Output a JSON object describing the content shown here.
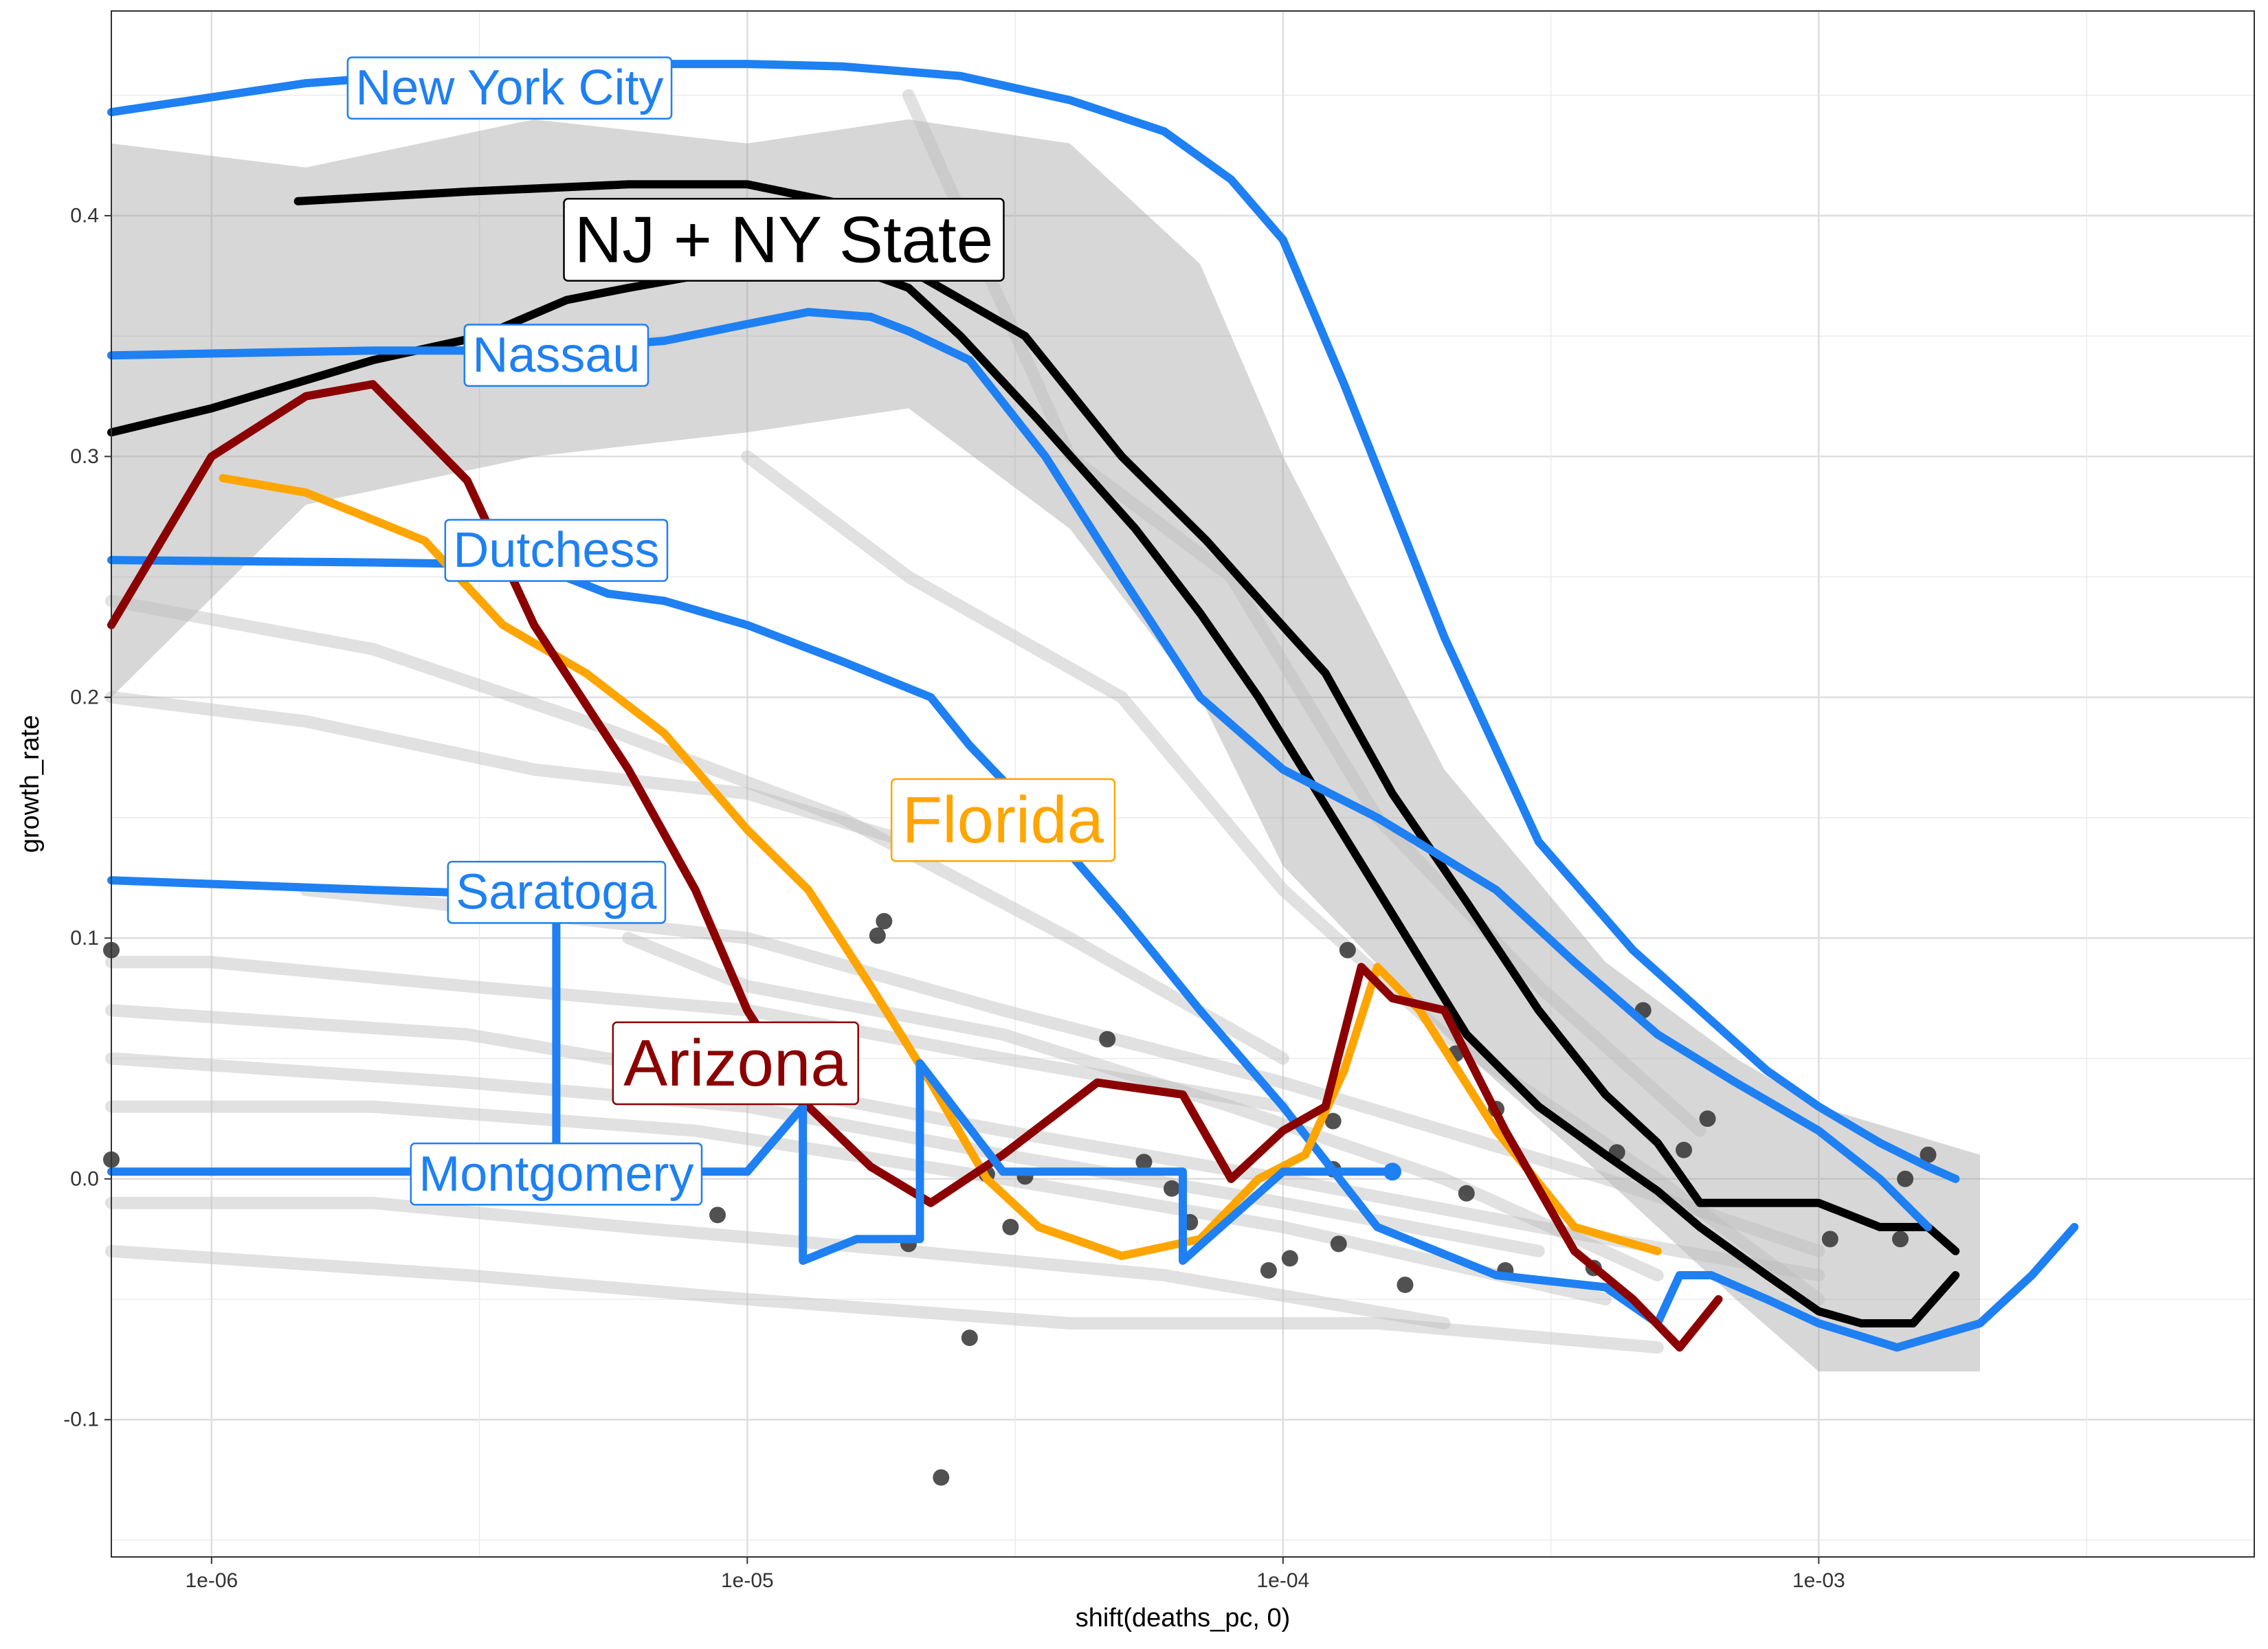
{
  "chart_data": {
    "type": "line",
    "xlabel": "shift(deaths_pc, 0)",
    "ylabel": "growth_rate",
    "x_scale": "log10",
    "xlim": [
      6.5e-07,
      0.0065
    ],
    "ylim": [
      -0.157,
      0.485
    ],
    "x_ticks": [
      {
        "value": 1e-06,
        "label": "1e-06"
      },
      {
        "value": 1e-05,
        "label": "1e-05"
      },
      {
        "value": 0.0001,
        "label": "1e-04"
      },
      {
        "value": 0.001,
        "label": "1e-03"
      }
    ],
    "y_ticks": [
      {
        "value": -0.1,
        "label": "-0.1"
      },
      {
        "value": 0.0,
        "label": "0.0"
      },
      {
        "value": 0.1,
        "label": "0.1"
      },
      {
        "value": 0.2,
        "label": "0.2"
      },
      {
        "value": 0.3,
        "label": "0.3"
      },
      {
        "value": 0.4,
        "label": "0.4"
      }
    ],
    "grid": true,
    "smooth_band": {
      "x": [
        6.5e-07,
        1.5e-06,
        4e-06,
        1e-05,
        2e-05,
        4e-05,
        7e-05,
        0.0001,
        0.0002,
        0.0004,
        0.0007,
        0.001,
        0.002
      ],
      "upper": [
        0.43,
        0.42,
        0.44,
        0.43,
        0.44,
        0.43,
        0.38,
        0.3,
        0.17,
        0.09,
        0.05,
        0.03,
        0.01
      ],
      "lower": [
        0.2,
        0.28,
        0.3,
        0.31,
        0.32,
        0.27,
        0.2,
        0.13,
        0.06,
        0.0,
        -0.05,
        -0.08,
        -0.08
      ]
    },
    "background_series": [
      {
        "x": [
          6.5e-07,
          3e-06,
          1e-05,
          3e-05,
          0.0001,
          0.0003,
          0.001
        ],
        "values": [
          0.07,
          0.06,
          0.04,
          0.02,
          0.0,
          -0.02,
          -0.04
        ]
      },
      {
        "x": [
          6.5e-07,
          3e-06,
          1e-05,
          3e-05,
          0.0001,
          0.0003
        ],
        "values": [
          0.05,
          0.04,
          0.03,
          0.01,
          -0.01,
          -0.03
        ]
      },
      {
        "x": [
          6.5e-07,
          2e-06,
          8e-06,
          3e-05,
          0.0001,
          0.0004
        ],
        "values": [
          0.03,
          0.03,
          0.02,
          0.0,
          -0.02,
          -0.05
        ]
      },
      {
        "x": [
          6.5e-07,
          2e-06,
          6e-06,
          2e-05,
          6e-05,
          0.0002
        ],
        "values": [
          -0.01,
          -0.01,
          -0.02,
          -0.03,
          -0.04,
          -0.06
        ]
      },
      {
        "x": [
          6.5e-07,
          3e-06,
          1e-05,
          4e-05,
          0.00015,
          0.0005
        ],
        "values": [
          -0.03,
          -0.04,
          -0.05,
          -0.06,
          -0.06,
          -0.07
        ]
      },
      {
        "x": [
          6.5e-07,
          1.5e-06,
          4e-06,
          1e-05,
          2e-05
        ],
        "values": [
          0.2,
          0.19,
          0.17,
          0.16,
          0.14
        ]
      },
      {
        "x": [
          6.5e-07,
          2e-06,
          5e-06,
          1.5e-05,
          4e-05,
          0.0001
        ],
        "values": [
          0.24,
          0.22,
          0.19,
          0.15,
          0.1,
          0.05
        ]
      },
      {
        "x": [
          2e-05,
          4e-05,
          8e-05,
          0.00015,
          0.0003,
          0.0006
        ],
        "values": [
          0.45,
          0.3,
          0.25,
          0.15,
          0.08,
          0.02
        ]
      },
      {
        "x": [
          1e-05,
          2e-05,
          5e-05,
          0.0001,
          0.0002,
          0.0005,
          0.001
        ],
        "values": [
          0.3,
          0.25,
          0.2,
          0.12,
          0.06,
          0.0,
          -0.05
        ]
      },
      {
        "x": [
          6e-06,
          1e-05,
          3e-05,
          8e-05,
          0.0002,
          0.0005
        ],
        "values": [
          0.1,
          0.08,
          0.06,
          0.03,
          0.0,
          -0.04
        ]
      },
      {
        "x": [
          1.5e-06,
          4e-06,
          1e-05,
          3e-05,
          0.0001,
          0.0004,
          0.001
        ],
        "values": [
          0.12,
          0.11,
          0.1,
          0.07,
          0.04,
          0.0,
          -0.03
        ]
      },
      {
        "x": [
          6.5e-07,
          1e-06,
          3e-06,
          1e-05,
          3e-05,
          0.0001
        ],
        "values": [
          0.09,
          0.09,
          0.08,
          0.07,
          0.05,
          0.03
        ]
      }
    ],
    "scatter_points": {
      "x": [
        6.5e-07,
        6.5e-07,
        8.8e-06,
        1.75e-05,
        1.8e-05,
        2e-05,
        2.3e-05,
        2.6e-05,
        2.8e-05,
        3.1e-05,
        3.3e-05,
        4.7e-05,
        5.5e-05,
        6.2e-05,
        6.7e-05,
        9.4e-05,
        0.000103,
        0.000124,
        0.000124,
        0.000127,
        0.000132,
        0.000169,
        0.00021,
        0.00022,
        0.00025,
        0.00026,
        0.00038,
        0.00042,
        0.00047,
        0.00056,
        0.00062,
        0.00105,
        0.00142,
        0.00145,
        0.0016
      ],
      "values": [
        0.095,
        0.008,
        -0.015,
        0.101,
        0.107,
        -0.027,
        -0.124,
        -0.066,
        0.002,
        -0.02,
        0.001,
        0.058,
        0.007,
        -0.004,
        -0.018,
        -0.038,
        -0.033,
        0.024,
        0.004,
        -0.027,
        0.095,
        -0.044,
        0.052,
        -0.006,
        0.029,
        -0.038,
        -0.037,
        0.011,
        0.07,
        0.012,
        0.025,
        -0.025,
        -0.025,
        0.0,
        0.01
      ]
    },
    "series": [
      {
        "name": "New York City",
        "color": "#1E80F2",
        "x": [
          6.5e-07,
          1.5e-06,
          3e-06,
          6e-06,
          1e-05,
          1.5e-05,
          2.5e-05,
          4e-05,
          6e-05,
          8e-05,
          0.0001,
          0.00013,
          0.0002,
          0.0003,
          0.00045,
          0.0006,
          0.0008,
          0.001,
          0.0013,
          0.0016,
          0.0018
        ],
        "values": [
          0.443,
          0.455,
          0.46,
          0.463,
          0.463,
          0.462,
          0.458,
          0.448,
          0.435,
          0.415,
          0.39,
          0.33,
          0.225,
          0.14,
          0.095,
          0.07,
          0.045,
          0.03,
          0.015,
          0.005,
          0.0
        ]
      },
      {
        "name": "NJ + NY State",
        "color": "#000000",
        "x": [
          6.5e-07,
          1e-06,
          2e-06,
          3.2e-06,
          4.6e-06,
          6e-06,
          9e-06,
          1.3e-05,
          2e-05,
          2.5e-05,
          3.5e-05,
          5.3e-05,
          7e-05,
          9e-05,
          0.00012,
          0.00016,
          0.00022,
          0.0003,
          0.0004,
          0.0005,
          0.0006,
          0.0008,
          0.001,
          0.0012,
          0.0015,
          0.0018
        ],
        "values": [
          0.31,
          0.32,
          0.34,
          0.35,
          0.365,
          0.37,
          0.377,
          0.385,
          0.37,
          0.35,
          0.315,
          0.27,
          0.235,
          0.2,
          0.155,
          0.11,
          0.06,
          0.03,
          0.01,
          -0.005,
          -0.02,
          -0.04,
          -0.055,
          -0.06,
          -0.06,
          -0.04
        ]
      },
      {
        "name": "NJ + NY State (upper)",
        "color": "#000000",
        "x": [
          1.45e-06,
          3e-06,
          6e-06,
          1e-05,
          1.5e-05,
          2.1e-05,
          3.3e-05,
          5e-05,
          7.2e-05,
          9.5e-05,
          0.00012,
          0.00016,
          0.00022,
          0.0003,
          0.0004,
          0.0005,
          0.0006,
          0.0008,
          0.001,
          0.0013,
          0.0016,
          0.0018
        ],
        "values": [
          0.406,
          0.41,
          0.413,
          0.413,
          0.405,
          0.375,
          0.35,
          0.3,
          0.265,
          0.235,
          0.21,
          0.16,
          0.115,
          0.07,
          0.035,
          0.015,
          -0.01,
          -0.01,
          -0.01,
          -0.02,
          -0.02,
          -0.03
        ]
      },
      {
        "name": "Nassau",
        "color": "#1E80F2",
        "x": [
          6.5e-07,
          2e-06,
          4e-06,
          7e-06,
          1e-05,
          1.3e-05,
          1.7e-05,
          2e-05,
          2.6e-05,
          3.6e-05,
          5e-05,
          7e-05,
          0.0001,
          0.00015,
          0.00025,
          0.00035,
          0.0005,
          0.0007,
          0.001,
          0.0013,
          0.0016
        ],
        "values": [
          0.342,
          0.344,
          0.344,
          0.348,
          0.355,
          0.36,
          0.358,
          0.352,
          0.34,
          0.3,
          0.25,
          0.2,
          0.17,
          0.15,
          0.12,
          0.09,
          0.06,
          0.04,
          0.02,
          0.0,
          -0.02
        ]
      },
      {
        "name": "Dutchess",
        "color": "#1E80F2",
        "x": [
          6.5e-07,
          2e-06,
          4e-06,
          5.5e-06,
          7e-06,
          1e-05,
          1.5e-05,
          2.2e-05,
          2.6e-05,
          3.5e-05,
          5e-05,
          7e-05,
          0.0001,
          0.00015,
          0.00025,
          0.0004,
          0.0005,
          0.00055,
          0.00063,
          0.0008,
          0.001,
          0.0014,
          0.002,
          0.0025,
          0.003
        ],
        "values": [
          0.257,
          0.256,
          0.255,
          0.243,
          0.24,
          0.23,
          0.215,
          0.2,
          0.18,
          0.15,
          0.11,
          0.07,
          0.03,
          -0.02,
          -0.04,
          -0.045,
          -0.06,
          -0.04,
          -0.04,
          -0.05,
          -0.06,
          -0.07,
          -0.06,
          -0.04,
          -0.02
        ]
      },
      {
        "name": "Florida",
        "color": "#FFA500",
        "x": [
          1.05e-06,
          1.5e-06,
          2.5e-06,
          3.5e-06,
          5e-06,
          7e-06,
          1e-05,
          1.3e-05,
          1.7e-05,
          2.2e-05,
          2.8e-05,
          3.5e-05,
          5e-05,
          7e-05,
          9e-05,
          0.00011,
          0.00013,
          0.00015,
          0.00018,
          0.00025,
          0.00035,
          0.0005
        ],
        "values": [
          0.291,
          0.285,
          0.265,
          0.23,
          0.21,
          0.185,
          0.145,
          0.12,
          0.08,
          0.04,
          0.0,
          -0.02,
          -0.032,
          -0.025,
          0.0,
          0.01,
          0.045,
          0.088,
          0.07,
          0.02,
          -0.02,
          -0.03
        ]
      },
      {
        "name": "Arizona",
        "color": "#8B0000",
        "x": [
          6.5e-07,
          1e-06,
          1.5e-06,
          2e-06,
          3e-06,
          4e-06,
          6e-06,
          8e-06,
          1e-05,
          1.3e-05,
          1.7e-05,
          2.2e-05,
          3e-05,
          4.5e-05,
          6.5e-05,
          8e-05,
          0.0001,
          0.00012,
          0.00014,
          0.00016,
          0.0002,
          0.00026,
          0.00035,
          0.00045,
          0.00055,
          0.00065
        ],
        "values": [
          0.23,
          0.3,
          0.325,
          0.33,
          0.29,
          0.23,
          0.17,
          0.12,
          0.07,
          0.03,
          0.005,
          -0.01,
          0.01,
          0.04,
          0.035,
          0.0,
          0.02,
          0.03,
          0.088,
          0.075,
          0.07,
          0.02,
          -0.03,
          -0.05,
          -0.07,
          -0.05
        ]
      },
      {
        "name": "Saratoga",
        "color": "#1E80F2",
        "x": [
          6.5e-07,
          2e-06,
          3.8e-06,
          4.4e-06,
          4.4e-06
        ],
        "values": [
          0.124,
          0.12,
          0.118,
          0.108,
          0.015
        ]
      },
      {
        "name": "Montgomery",
        "color": "#1E80F2",
        "x": [
          6.5e-07,
          2e-06,
          5e-06,
          1e-05,
          1.27e-05,
          1.27e-05,
          1.6e-05,
          2.1e-05,
          2.1e-05,
          3e-05,
          5e-05,
          6.5e-05,
          6.5e-05,
          0.0001,
          0.00016
        ],
        "values": [
          0.003,
          0.003,
          0.003,
          0.003,
          0.03,
          -0.034,
          -0.025,
          -0.025,
          0.048,
          0.003,
          0.003,
          0.003,
          -0.034,
          0.003,
          0.003
        ]
      }
    ],
    "labels": [
      {
        "text": "New York City",
        "color": "#1E80F2",
        "x": 3.6e-06,
        "y": 0.453,
        "size": "medium"
      },
      {
        "text": "NJ + NY State",
        "color": "#000000",
        "x": 1.17e-05,
        "y": 0.39,
        "size": "large"
      },
      {
        "text": "Nassau",
        "color": "#1E80F2",
        "x": 4.4e-06,
        "y": 0.342,
        "size": "medium"
      },
      {
        "text": "Dutchess",
        "color": "#1E80F2",
        "x": 4.4e-06,
        "y": 0.261,
        "size": "medium"
      },
      {
        "text": "Florida",
        "color": "#FFA500",
        "x": 3e-05,
        "y": 0.149,
        "size": "large"
      },
      {
        "text": "Saratoga",
        "color": "#1E80F2",
        "x": 4.4e-06,
        "y": 0.119,
        "size": "medium"
      },
      {
        "text": "Arizona",
        "color": "#8B0000",
        "x": 9.5e-06,
        "y": 0.048,
        "size": "large"
      },
      {
        "text": "Montgomery",
        "color": "#1E80F2",
        "x": 4.4e-06,
        "y": 0.002,
        "size": "medium"
      }
    ]
  }
}
